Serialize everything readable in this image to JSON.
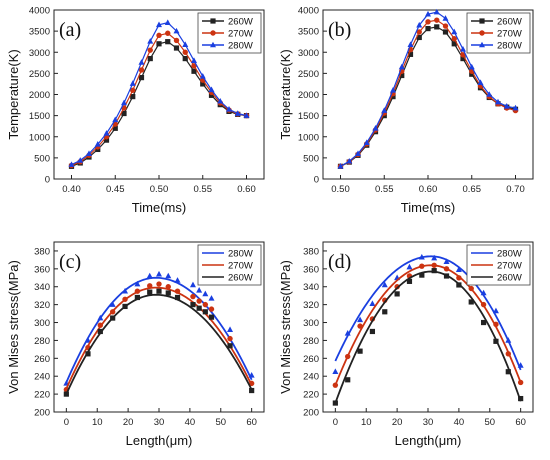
{
  "colors": {
    "260W": "#222222",
    "270W": "#cc3311",
    "280W": "#1a3fe0"
  },
  "chart_data": [
    {
      "type": "line",
      "panel_label": "(a)",
      "xlabel": "Time(ms)",
      "ylabel": "Temperature(K)",
      "xlim": [
        0.38,
        0.62
      ],
      "ylim": [
        0,
        4000
      ],
      "xticks": [
        "0.40",
        "0.45",
        "0.50",
        "0.55",
        "0.60"
      ],
      "xtick_values": [
        0.4,
        0.45,
        0.5,
        0.55,
        0.6
      ],
      "yticks": [
        "0",
        "500",
        "1000",
        "1500",
        "2000",
        "2500",
        "3000",
        "3500",
        "4000"
      ],
      "ytick_values": [
        0,
        500,
        1000,
        1500,
        2000,
        2500,
        3000,
        3500,
        4000
      ],
      "legend_position": "top-right",
      "series": [
        {
          "name": "260W",
          "marker": "square",
          "color": "#222222",
          "x": [
            0.4,
            0.41,
            0.42,
            0.43,
            0.44,
            0.45,
            0.46,
            0.47,
            0.48,
            0.49,
            0.5,
            0.51,
            0.52,
            0.53,
            0.54,
            0.55,
            0.56,
            0.57,
            0.58,
            0.59,
            0.6
          ],
          "y": [
            300,
            380,
            520,
            700,
            920,
            1200,
            1550,
            1950,
            2400,
            2850,
            3200,
            3250,
            3100,
            2850,
            2550,
            2250,
            1980,
            1760,
            1600,
            1530,
            1500
          ]
        },
        {
          "name": "270W",
          "marker": "circle",
          "color": "#cc3311",
          "x": [
            0.4,
            0.41,
            0.42,
            0.43,
            0.44,
            0.45,
            0.46,
            0.47,
            0.48,
            0.49,
            0.5,
            0.51,
            0.52,
            0.53,
            0.54,
            0.55,
            0.56,
            0.57,
            0.58,
            0.59,
            0.6
          ],
          "y": [
            320,
            410,
            560,
            760,
            1000,
            1300,
            1680,
            2100,
            2580,
            3050,
            3400,
            3450,
            3280,
            3000,
            2680,
            2340,
            2050,
            1800,
            1630,
            1540,
            1500
          ]
        },
        {
          "name": "280W",
          "marker": "triangle",
          "color": "#1a3fe0",
          "x": [
            0.4,
            0.41,
            0.42,
            0.43,
            0.44,
            0.45,
            0.46,
            0.47,
            0.48,
            0.49,
            0.5,
            0.51,
            0.52,
            0.53,
            0.54,
            0.55,
            0.56,
            0.57,
            0.58,
            0.59,
            0.6
          ],
          "y": [
            340,
            440,
            600,
            820,
            1080,
            1400,
            1800,
            2260,
            2760,
            3260,
            3650,
            3700,
            3500,
            3180,
            2800,
            2430,
            2110,
            1840,
            1650,
            1550,
            1500
          ]
        }
      ]
    },
    {
      "type": "line",
      "panel_label": "(b)",
      "xlabel": "Time(ms)",
      "ylabel": "Temperature(K)",
      "xlim": [
        0.48,
        0.72
      ],
      "ylim": [
        0,
        4000
      ],
      "xticks": [
        "0.50",
        "0.55",
        "0.60",
        "0.65",
        "0.70"
      ],
      "xtick_values": [
        0.5,
        0.55,
        0.6,
        0.65,
        0.7
      ],
      "yticks": [
        "0",
        "500",
        "1000",
        "1500",
        "2000",
        "2500",
        "3000",
        "3500",
        "4000"
      ],
      "ytick_values": [
        0,
        500,
        1000,
        1500,
        2000,
        2500,
        3000,
        3500,
        4000
      ],
      "legend_position": "top-right",
      "series": [
        {
          "name": "260W",
          "marker": "square",
          "color": "#222222",
          "x": [
            0.5,
            0.51,
            0.52,
            0.53,
            0.54,
            0.55,
            0.56,
            0.57,
            0.58,
            0.59,
            0.6,
            0.61,
            0.62,
            0.63,
            0.64,
            0.65,
            0.66,
            0.67,
            0.68,
            0.69,
            0.7
          ],
          "y": [
            300,
            400,
            560,
            800,
            1120,
            1500,
            1950,
            2450,
            2950,
            3350,
            3560,
            3600,
            3480,
            3200,
            2850,
            2480,
            2160,
            1930,
            1780,
            1700,
            1650
          ]
        },
        {
          "name": "270W",
          "marker": "circle",
          "color": "#cc3311",
          "x": [
            0.5,
            0.51,
            0.52,
            0.53,
            0.54,
            0.55,
            0.56,
            0.57,
            0.58,
            0.59,
            0.6,
            0.61,
            0.62,
            0.63,
            0.64,
            0.65,
            0.66,
            0.67,
            0.68,
            0.69,
            0.7
          ],
          "y": [
            300,
            410,
            580,
            830,
            1160,
            1560,
            2020,
            2550,
            3060,
            3480,
            3720,
            3760,
            3620,
            3320,
            2940,
            2550,
            2200,
            1950,
            1780,
            1680,
            1620
          ]
        },
        {
          "name": "280W",
          "marker": "triangle",
          "color": "#1a3fe0",
          "x": [
            0.5,
            0.51,
            0.52,
            0.53,
            0.54,
            0.55,
            0.56,
            0.57,
            0.58,
            0.59,
            0.6,
            0.61,
            0.62,
            0.63,
            0.64,
            0.65,
            0.66,
            0.67,
            0.68,
            0.69,
            0.7
          ],
          "y": [
            300,
            420,
            600,
            860,
            1200,
            1620,
            2100,
            2650,
            3180,
            3640,
            3900,
            3950,
            3800,
            3480,
            3070,
            2650,
            2280,
            2000,
            1820,
            1720,
            1680
          ]
        }
      ]
    },
    {
      "type": "scatter",
      "panel_label": "(c)",
      "xlabel": "Length(μm)",
      "ylabel": "Von Mises stress(MPa)",
      "xlim": [
        -4,
        64
      ],
      "ylim": [
        200,
        390
      ],
      "xticks": [
        "0",
        "10",
        "20",
        "30",
        "40",
        "50",
        "60"
      ],
      "xtick_values": [
        0,
        10,
        20,
        30,
        40,
        50,
        60
      ],
      "yticks": [
        "200",
        "220",
        "240",
        "260",
        "280",
        "300",
        "320",
        "340",
        "360",
        "380"
      ],
      "ytick_values": [
        200,
        220,
        240,
        260,
        280,
        300,
        320,
        340,
        360,
        380
      ],
      "legend_position": "top-right",
      "legend_order": [
        "280W",
        "270W",
        "260W"
      ],
      "series": [
        {
          "name": "280W",
          "marker": "triangle",
          "color": "#1a3fe0",
          "fit": {
            "peak_x": 29,
            "peak_y": 350,
            "start_y": 233,
            "end_y": 236
          },
          "x": [
            0,
            7,
            11,
            15,
            19,
            23,
            27,
            30,
            33,
            36,
            41,
            43,
            45,
            47,
            53,
            60
          ],
          "y": [
            232,
            280,
            305,
            320,
            335,
            343,
            352,
            354,
            352,
            347,
            342,
            336,
            332,
            327,
            292,
            241
          ]
        },
        {
          "name": "270W",
          "marker": "circle",
          "color": "#cc3311",
          "fit": {
            "peak_x": 29,
            "peak_y": 339,
            "start_y": 226,
            "end_y": 230
          },
          "x": [
            0,
            7,
            11,
            15,
            19,
            23,
            27,
            30,
            33,
            36,
            41,
            43,
            45,
            47,
            53,
            60
          ],
          "y": [
            225,
            272,
            297,
            312,
            326,
            335,
            341,
            343,
            340,
            335,
            329,
            324,
            320,
            315,
            282,
            232
          ]
        },
        {
          "name": "260W",
          "marker": "square",
          "color": "#222222",
          "fit": {
            "peak_x": 29,
            "peak_y": 331,
            "start_y": 220,
            "end_y": 225
          },
          "x": [
            0,
            7,
            11,
            15,
            19,
            23,
            27,
            30,
            33,
            36,
            41,
            43,
            45,
            47,
            53,
            60
          ],
          "y": [
            220,
            265,
            290,
            305,
            318,
            328,
            334,
            335,
            333,
            328,
            320,
            316,
            312,
            306,
            274,
            224
          ]
        }
      ]
    },
    {
      "type": "scatter",
      "panel_label": "(d)",
      "xlabel": "Length(μm)",
      "ylabel": "Von Mises stress(MPa)",
      "xlim": [
        -4,
        64
      ],
      "ylim": [
        200,
        390
      ],
      "xticks": [
        "0",
        "10",
        "20",
        "30",
        "40",
        "50",
        "60"
      ],
      "xtick_values": [
        0,
        10,
        20,
        30,
        40,
        50,
        60
      ],
      "yticks": [
        "200",
        "220",
        "240",
        "260",
        "280",
        "300",
        "320",
        "340",
        "360",
        "380"
      ],
      "ytick_values": [
        200,
        220,
        240,
        260,
        280,
        300,
        320,
        340,
        360,
        380
      ],
      "legend_position": "top-right",
      "legend_order": [
        "280W",
        "270W",
        "260W"
      ],
      "series": [
        {
          "name": "280W",
          "marker": "triangle",
          "color": "#1a3fe0",
          "fit": {
            "peak_x": 31,
            "peak_y": 374,
            "start_y": 257,
            "end_y": 247
          },
          "x": [
            0,
            4,
            8,
            12,
            16,
            20,
            24,
            28,
            32,
            36,
            40,
            44,
            48,
            52,
            56,
            60
          ],
          "y": [
            245,
            288,
            303,
            321,
            342,
            350,
            362,
            373,
            372,
            368,
            359,
            349,
            333,
            313,
            280,
            252
          ]
        },
        {
          "name": "270W",
          "marker": "circle",
          "color": "#cc3311",
          "fit": {
            "peak_x": 31,
            "peak_y": 364,
            "start_y": 230,
            "end_y": 233
          },
          "x": [
            0,
            4,
            8,
            12,
            16,
            20,
            24,
            28,
            32,
            36,
            40,
            44,
            48,
            52,
            56,
            60
          ],
          "y": [
            230,
            262,
            296,
            304,
            325,
            340,
            352,
            363,
            364,
            360,
            350,
            338,
            320,
            298,
            265,
            233
          ]
        },
        {
          "name": "260W",
          "marker": "square",
          "color": "#222222",
          "fit": {
            "peak_x": 31,
            "peak_y": 357,
            "start_y": 210,
            "end_y": 212
          },
          "x": [
            0,
            4,
            8,
            12,
            16,
            20,
            24,
            28,
            32,
            36,
            40,
            44,
            48,
            52,
            56,
            60
          ],
          "y": [
            210,
            236,
            268,
            290,
            312,
            332,
            346,
            353,
            358,
            352,
            342,
            323,
            300,
            279,
            245,
            215
          ]
        }
      ]
    }
  ]
}
